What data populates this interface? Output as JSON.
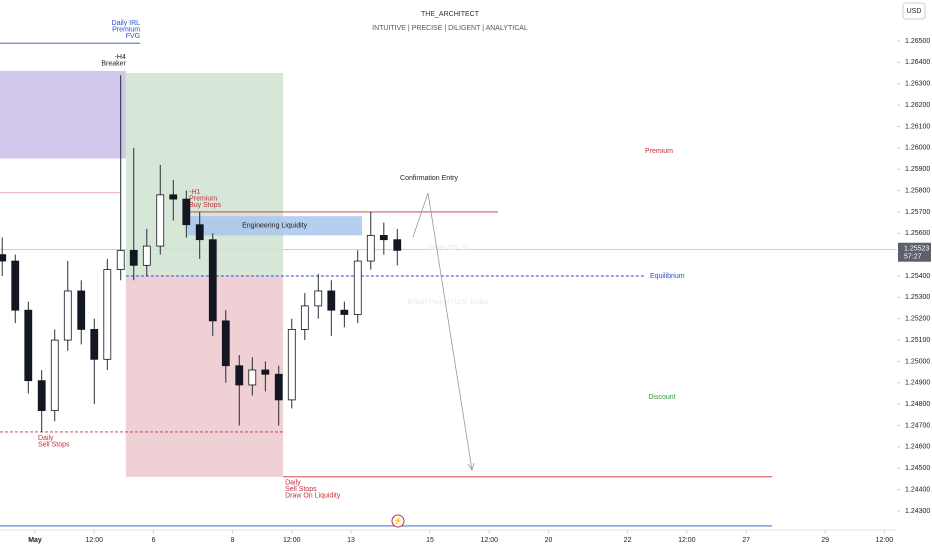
{
  "chart_data": {
    "type": "candlestick",
    "title": "THE_ARCHITECT",
    "subtitle": "INTUITIVE | PRECISE | DILIGENT | ANALYTICAL",
    "watermark": "GBPUSD, 1h",
    "watermark_subtitle": "British Pound / U.S. Dollar",
    "currency": "USD",
    "last_price": 1.25523,
    "last_price_label": "1.25523",
    "countdown": "57:27",
    "xlim": [
      -0.886,
      21.82
    ],
    "ylim": [
      1.24211,
      1.26692
    ],
    "xticks": [
      {
        "value": 0,
        "label": "May"
      },
      {
        "value": 1.5,
        "label": "12:00"
      },
      {
        "value": 3,
        "label": "6"
      },
      {
        "value": 5,
        "label": "8"
      },
      {
        "value": 6.5,
        "label": "12:00"
      },
      {
        "value": 8,
        "label": "13"
      },
      {
        "value": 10,
        "label": "15"
      },
      {
        "value": 11.5,
        "label": "12:00"
      },
      {
        "value": 13,
        "label": "20"
      },
      {
        "value": 15,
        "label": "22"
      },
      {
        "value": 16.5,
        "label": "12:00"
      },
      {
        "value": 18,
        "label": "27"
      },
      {
        "value": 20,
        "label": "29"
      },
      {
        "value": 21.5,
        "label": "12:00"
      }
    ],
    "yticks": [
      {
        "value": 1.243,
        "label": "1.24300"
      },
      {
        "value": 1.244,
        "label": "1.24400"
      },
      {
        "value": 1.245,
        "label": "1.24500"
      },
      {
        "value": 1.246,
        "label": "1.24600"
      },
      {
        "value": 1.247,
        "label": "1.24700"
      },
      {
        "value": 1.248,
        "label": "1.24800"
      },
      {
        "value": 1.249,
        "label": "1.24900"
      },
      {
        "value": 1.25,
        "label": "1.25000"
      },
      {
        "value": 1.251,
        "label": "1.25100"
      },
      {
        "value": 1.252,
        "label": "1.25200"
      },
      {
        "value": 1.253,
        "label": "1.25300"
      },
      {
        "value": 1.254,
        "label": "1.25400"
      },
      {
        "value": 1.255,
        "label": "1.25500"
      },
      {
        "value": 1.256,
        "label": "1.25600"
      },
      {
        "value": 1.257,
        "label": "1.25700"
      },
      {
        "value": 1.258,
        "label": "1.25800"
      },
      {
        "value": 1.259,
        "label": "1.25900"
      },
      {
        "value": 1.26,
        "label": "1.26000"
      },
      {
        "value": 1.261,
        "label": "1.26100"
      },
      {
        "value": 1.262,
        "label": "1.26200"
      },
      {
        "value": 1.263,
        "label": "1.26300"
      },
      {
        "value": 1.264,
        "label": "1.26400"
      },
      {
        "value": 1.265,
        "label": "1.26500"
      }
    ],
    "up_color": "#ffffff",
    "down_color": "#131722",
    "x": [
      -0.83,
      -0.5,
      -0.17,
      0.17,
      0.5,
      0.83,
      1.17,
      1.5,
      1.83,
      2.17,
      2.5,
      2.83,
      3.17,
      3.5,
      3.83,
      4.17,
      4.5,
      4.83,
      5.17,
      5.5,
      5.83,
      6.17,
      6.5,
      6.83,
      7.17,
      7.5,
      7.83,
      8.17,
      8.5,
      8.83,
      9.17
    ],
    "open": [
      1.255,
      1.2547,
      1.2524,
      1.2491,
      1.2477,
      1.251,
      1.2533,
      1.2515,
      1.2501,
      1.2543,
      1.2552,
      1.2545,
      1.2554,
      1.2578,
      1.2576,
      1.2564,
      1.2557,
      1.2519,
      1.2498,
      1.2489,
      1.2496,
      1.2494,
      1.2482,
      1.2515,
      1.2526,
      1.2533,
      1.2524,
      1.2522,
      1.2547,
      1.2559,
      1.2557
    ],
    "high": [
      1.2558,
      1.255,
      1.2528,
      1.2496,
      1.2515,
      1.2547,
      1.2538,
      1.252,
      1.2548,
      1.2634,
      1.26,
      1.2562,
      1.2592,
      1.2585,
      1.258,
      1.257,
      1.256,
      1.2524,
      1.2503,
      1.2502,
      1.25,
      1.2498,
      1.252,
      1.2532,
      1.2541,
      1.2538,
      1.2528,
      1.2552,
      1.257,
      1.2565,
      1.2562
    ],
    "low": [
      1.254,
      1.2518,
      1.2485,
      1.2467,
      1.2472,
      1.2505,
      1.2508,
      1.248,
      1.2496,
      1.2538,
      1.2538,
      1.254,
      1.255,
      1.2566,
      1.2558,
      1.2548,
      1.2512,
      1.249,
      1.247,
      1.2484,
      1.2486,
      1.247,
      1.2478,
      1.251,
      1.252,
      1.2512,
      1.2516,
      1.2518,
      1.2543,
      1.255,
      1.2545
    ],
    "close": [
      1.2547,
      1.2524,
      1.2491,
      1.2477,
      1.251,
      1.2533,
      1.2515,
      1.2501,
      1.2543,
      1.2552,
      1.2545,
      1.2554,
      1.2578,
      1.2576,
      1.2564,
      1.2557,
      1.2519,
      1.2498,
      1.2489,
      1.2496,
      1.2494,
      1.2482,
      1.2515,
      1.2526,
      1.2533,
      1.2524,
      1.2522,
      1.2547,
      1.2559,
      1.2557,
      1.2552
    ],
    "shapes": [
      {
        "kind": "line",
        "color": "#2a4fc9",
        "x": [
          -0.886,
          2.66
        ],
        "y": [
          1.2649
        ],
        "label": [
          "Daily IRL",
          "Premium",
          "FVG"
        ]
      },
      {
        "kind": "rect",
        "color": "#c8bde6",
        "x": [
          -0.886,
          2.3
        ],
        "y": [
          1.2595,
          1.2636
        ],
        "label": [
          "-H4",
          "Breaker"
        ]
      },
      {
        "kind": "rect",
        "color": "#cfe3d1",
        "x": [
          2.3,
          6.28
        ],
        "y": [
          1.254,
          1.2635
        ]
      },
      {
        "kind": "rect",
        "color": "#ecc8cd",
        "x": [
          2.3,
          6.28
        ],
        "y": [
          1.2446,
          1.254
        ]
      },
      {
        "kind": "rect",
        "color": "#a9c6ec",
        "x": [
          3.85,
          8.28
        ],
        "y": [
          1.2559,
          1.2568
        ],
        "label": [
          "Engineering Liquidity"
        ]
      },
      {
        "kind": "line",
        "color": "#e9a3ab",
        "x": [
          -0.886,
          2.15
        ],
        "y": [
          1.2579
        ]
      },
      {
        "kind": "line",
        "color": "#c2303e",
        "x": [
          3.85,
          11.72
        ],
        "y": [
          1.257
        ],
        "label": [
          "-H1",
          "Premium",
          "Buy Stops"
        ]
      },
      {
        "kind": "dashed",
        "color": "#2a4fc9",
        "x": [
          2.3,
          15.44
        ],
        "y": [
          1.254
        ],
        "label": [
          "Equilibrium"
        ]
      },
      {
        "kind": "dashed",
        "color": "#c2303e",
        "x": [
          -0.886,
          6.28
        ],
        "y": [
          1.2467
        ],
        "label": [
          "Daily",
          "Sell Stops"
        ]
      },
      {
        "kind": "line",
        "color": "#c2303e",
        "x": [
          6.28,
          18.66
        ],
        "y": [
          1.2446
        ],
        "label": [
          "Daily",
          "Sell Stops",
          "Draw On Liquidity"
        ]
      },
      {
        "kind": "line",
        "color": "#2a4fc9",
        "x": [
          -0.886,
          18.66
        ],
        "y": [
          1.2423
        ]
      }
    ],
    "premium_label": "Premium",
    "discount_label": "Discount",
    "entry_label": "Confirmation Entry"
  }
}
